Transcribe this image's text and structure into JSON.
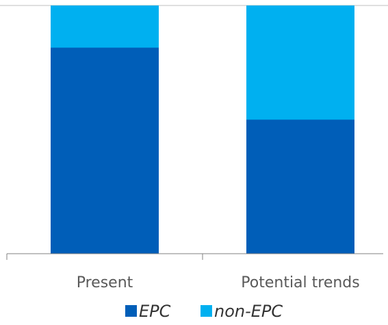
{
  "chart_data": {
    "type": "bar",
    "stacked": true,
    "normalized": true,
    "categories": [
      "Present",
      "Potential trends"
    ],
    "series": [
      {
        "name": "EPC",
        "values": [
          83,
          54
        ],
        "color": "#005EB8"
      },
      {
        "name": "non-EPC",
        "values": [
          17,
          46
        ],
        "color": "#00B0F0"
      }
    ],
    "ylim": [
      0,
      100
    ],
    "title": "",
    "xlabel": "",
    "ylabel": "",
    "grid": false,
    "legend_position": "bottom"
  }
}
